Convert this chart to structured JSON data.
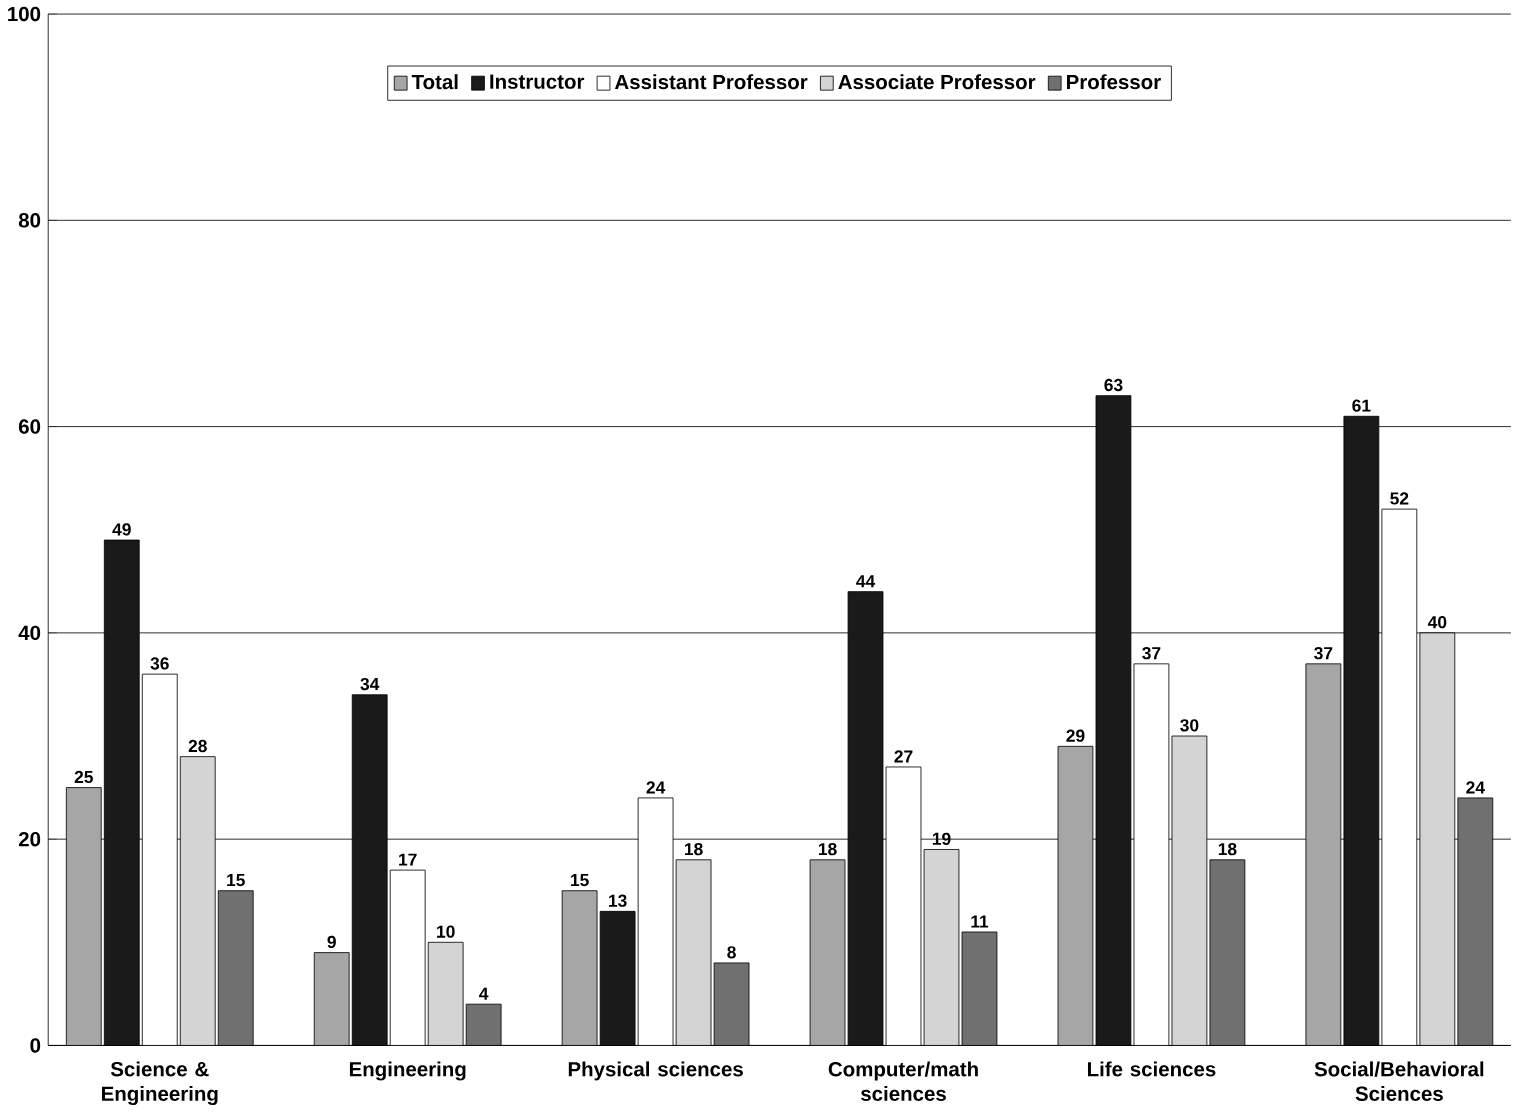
{
  "chart_data": {
    "type": "bar",
    "categories": [
      "Science & Engineering",
      "Engineering",
      "Physical sciences",
      "Computer/math sciences",
      "Life sciences",
      "Social/Behavioral Sciences"
    ],
    "series": [
      {
        "name": "Total",
        "color": "#a6a6a6",
        "values": [
          25,
          9,
          15,
          18,
          29,
          37
        ]
      },
      {
        "name": "Instructor",
        "color": "#1a1a1a",
        "values": [
          49,
          34,
          13,
          44,
          63,
          61
        ]
      },
      {
        "name": "Assistant Professor",
        "color": "#ffffff",
        "values": [
          36,
          17,
          24,
          27,
          37,
          52
        ]
      },
      {
        "name": "Associate Professor",
        "color": "#d4d4d4",
        "values": [
          28,
          10,
          18,
          19,
          30,
          40
        ]
      },
      {
        "name": "Professor",
        "color": "#707070",
        "values": [
          15,
          4,
          8,
          11,
          18,
          24
        ]
      }
    ],
    "ylim": [
      0,
      100
    ],
    "yticks": [
      0,
      20,
      40,
      60,
      80,
      100
    ],
    "grid": "y",
    "legend": "top",
    "data_labels": true
  }
}
